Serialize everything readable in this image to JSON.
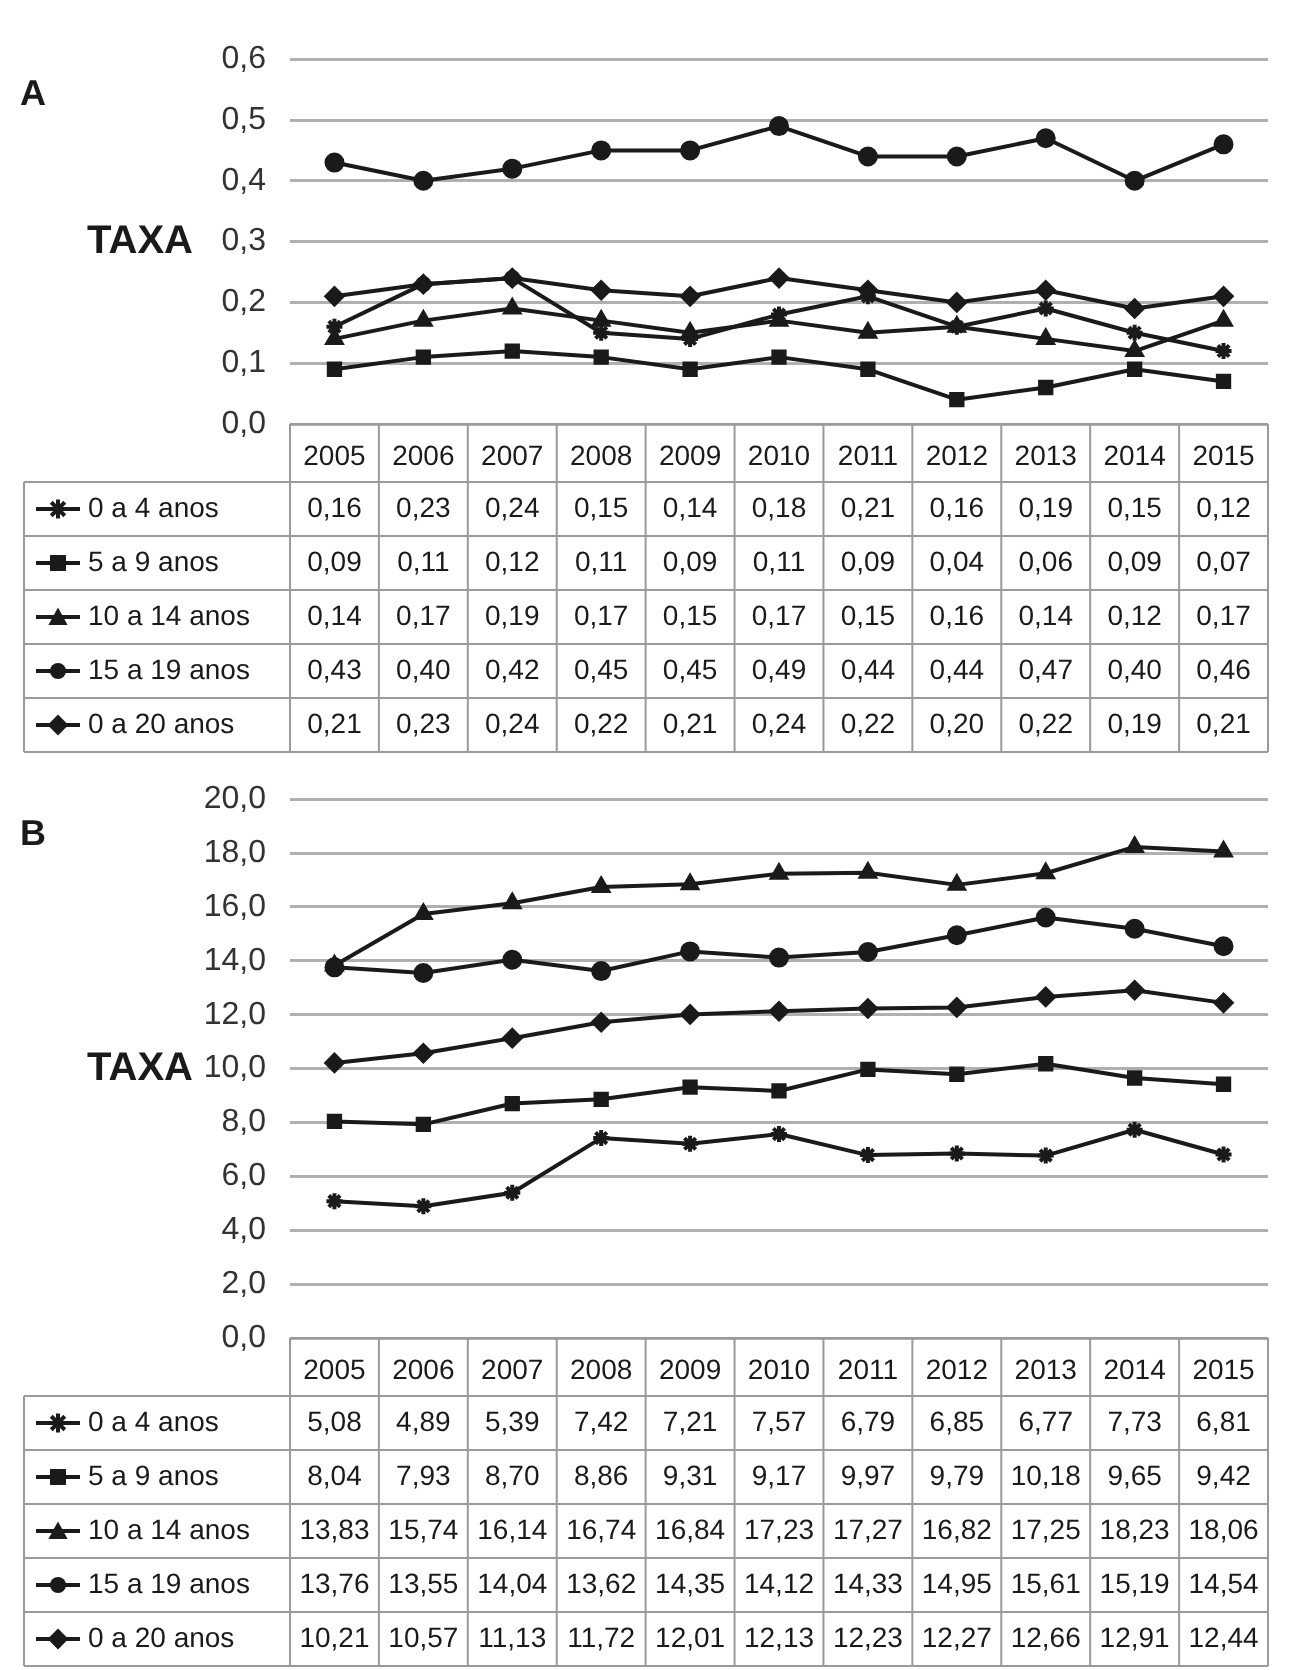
{
  "chart_data": [
    {
      "type": "line",
      "title": "A",
      "ylabel": "TAXA",
      "categories": [
        "2005",
        "2006",
        "2007",
        "2008",
        "2009",
        "2010",
        "2011",
        "2012",
        "2013",
        "2014",
        "2015"
      ],
      "ylim": [
        0,
        0.6
      ],
      "yticks": [
        {
          "value": 0,
          "label": "0,0"
        },
        {
          "value": 0.1,
          "label": "0,1"
        },
        {
          "value": 0.2,
          "label": "0,2"
        },
        {
          "value": 0.3,
          "label": "0,3"
        },
        {
          "value": 0.4,
          "label": "0,4"
        },
        {
          "value": 0.5,
          "label": "0,5"
        },
        {
          "value": 0.6,
          "label": "0,6"
        }
      ],
      "grid": "y",
      "legend": "bottom left",
      "line_style": "solid",
      "series": [
        {
          "name": "0 a 4 anos",
          "color": "#1a1a1a",
          "marker": "cross",
          "values": [
            0.16,
            0.23,
            0.24,
            0.15,
            0.14,
            0.18,
            0.21,
            0.16,
            0.19,
            0.15,
            0.12
          ],
          "value_labels": [
            "0,16",
            "0,23",
            "0,24",
            "0,15",
            "0,14",
            "0,18",
            "0,21",
            "0,16",
            "0,19",
            "0,15",
            "0,12"
          ]
        },
        {
          "name": "5 a 9 anos",
          "color": "#1a1a1a",
          "marker": "square",
          "values": [
            0.09,
            0.11,
            0.12,
            0.11,
            0.09,
            0.11,
            0.09,
            0.04,
            0.06,
            0.09,
            0.07
          ],
          "value_labels": [
            "0,09",
            "0,11",
            "0,12",
            "0,11",
            "0,09",
            "0,11",
            "0,09",
            "0,04",
            "0,06",
            "0,09",
            "0,07"
          ]
        },
        {
          "name": "10 a 14 anos",
          "color": "#1a1a1a",
          "marker": "triangle",
          "values": [
            0.14,
            0.17,
            0.19,
            0.17,
            0.15,
            0.17,
            0.15,
            0.16,
            0.14,
            0.12,
            0.17
          ],
          "value_labels": [
            "0,14",
            "0,17",
            "0,19",
            "0,17",
            "0,15",
            "0,17",
            "0,15",
            "0,16",
            "0,14",
            "0,12",
            "0,17"
          ]
        },
        {
          "name": "15 a 19 anos",
          "color": "#1a1a1a",
          "marker": "circle",
          "values": [
            0.43,
            0.4,
            0.42,
            0.45,
            0.45,
            0.49,
            0.44,
            0.44,
            0.47,
            0.4,
            0.46
          ],
          "value_labels": [
            "0,43",
            "0,40",
            "0,42",
            "0,45",
            "0,45",
            "0,49",
            "0,44",
            "0,44",
            "0,47",
            "0,40",
            "0,46"
          ]
        },
        {
          "name": "0 a 20 anos",
          "color": "#1a1a1a",
          "marker": "diamond",
          "values": [
            0.21,
            0.23,
            0.24,
            0.22,
            0.21,
            0.24,
            0.22,
            0.2,
            0.22,
            0.19,
            0.21
          ],
          "value_labels": [
            "0,21",
            "0,23",
            "0,24",
            "0,22",
            "0,21",
            "0,24",
            "0,22",
            "0,20",
            "0,22",
            "0,19",
            "0,21"
          ]
        }
      ]
    },
    {
      "type": "line",
      "title": "B",
      "ylabel": "TAXA",
      "categories": [
        "2005",
        "2006",
        "2007",
        "2008",
        "2009",
        "2010",
        "2011",
        "2012",
        "2013",
        "2014",
        "2015"
      ],
      "ylim": [
        0,
        20
      ],
      "yticks": [
        {
          "value": 0,
          "label": "0,0"
        },
        {
          "value": 2,
          "label": "2,0"
        },
        {
          "value": 4,
          "label": "4,0"
        },
        {
          "value": 6,
          "label": "6,0"
        },
        {
          "value": 8,
          "label": "8,0"
        },
        {
          "value": 10,
          "label": "10,0"
        },
        {
          "value": 12,
          "label": "12,0"
        },
        {
          "value": 14,
          "label": "14,0"
        },
        {
          "value": 16,
          "label": "16,0"
        },
        {
          "value": 18,
          "label": "18,0"
        },
        {
          "value": 20,
          "label": "20,0"
        }
      ],
      "grid": "y",
      "legend": "bottom left",
      "line_style": "solid",
      "series": [
        {
          "name": "0 a 4 anos",
          "color": "#1a1a1a",
          "marker": "cross",
          "values": [
            5.08,
            4.89,
            5.39,
            7.42,
            7.21,
            7.57,
            6.79,
            6.85,
            6.77,
            7.73,
            6.81
          ],
          "value_labels": [
            "5,08",
            "4,89",
            "5,39",
            "7,42",
            "7,21",
            "7,57",
            "6,79",
            "6,85",
            "6,77",
            "7,73",
            "6,81"
          ]
        },
        {
          "name": "5 a 9 anos",
          "color": "#1a1a1a",
          "marker": "square",
          "values": [
            8.04,
            7.93,
            8.7,
            8.86,
            9.31,
            9.17,
            9.97,
            9.79,
            10.18,
            9.65,
            9.42
          ],
          "value_labels": [
            "8,04",
            "7,93",
            "8,70",
            "8,86",
            "9,31",
            "9,17",
            "9,97",
            "9,79",
            "10,18",
            "9,65",
            "9,42"
          ]
        },
        {
          "name": "10 a 14 anos",
          "color": "#1a1a1a",
          "marker": "triangle",
          "values": [
            13.83,
            15.74,
            16.14,
            16.74,
            16.84,
            17.23,
            17.27,
            16.82,
            17.25,
            18.23,
            18.06
          ],
          "value_labels": [
            "13,83",
            "15,74",
            "16,14",
            "16,74",
            "16,84",
            "17,23",
            "17,27",
            "16,82",
            "17,25",
            "18,23",
            "18,06"
          ]
        },
        {
          "name": "15 a 19 anos",
          "color": "#1a1a1a",
          "marker": "circle",
          "values": [
            13.76,
            13.55,
            14.04,
            13.62,
            14.35,
            14.12,
            14.33,
            14.95,
            15.61,
            15.19,
            14.54
          ],
          "value_labels": [
            "13,76",
            "13,55",
            "14,04",
            "13,62",
            "14,35",
            "14,12",
            "14,33",
            "14,95",
            "15,61",
            "15,19",
            "14,54"
          ]
        },
        {
          "name": "0 a 20 anos",
          "color": "#1a1a1a",
          "marker": "diamond",
          "values": [
            10.21,
            10.57,
            11.13,
            11.72,
            12.01,
            12.13,
            12.23,
            12.27,
            12.66,
            12.91,
            12.44
          ],
          "value_labels": [
            "10,21",
            "10,57",
            "11,13",
            "11,72",
            "12,01",
            "12,13",
            "12,23",
            "12,27",
            "12,66",
            "12,91",
            "12,44"
          ]
        }
      ]
    }
  ]
}
